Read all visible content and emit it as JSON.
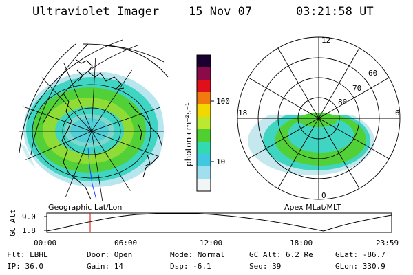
{
  "header": {
    "instrument": "Ultraviolet Imager",
    "date": "15 Nov 07",
    "time": "03:21:58 UT"
  },
  "geo_panel": {
    "label": "Geographic Lat/Lon"
  },
  "apex_panel": {
    "label": "Apex MLat/MLT",
    "mlt_labels": {
      "top": "12",
      "left": "18",
      "right": "6",
      "bottom": "0"
    },
    "mlat_labels": [
      "60",
      "70",
      "80"
    ]
  },
  "colorbar": {
    "unit_label": "photon cm⁻²s⁻¹",
    "ticks": [
      "100",
      "10"
    ],
    "colors": [
      "#1a0030",
      "#8a0a4a",
      "#e0101a",
      "#f07a10",
      "#f2d800",
      "#bde830",
      "#50d030",
      "#33d9b0",
      "#40c8e0",
      "#a0dff0",
      "#f2f5f5"
    ]
  },
  "altitude_plot": {
    "ylabel": "GC Alt",
    "y_ticks": [
      "9.0",
      "1.8"
    ],
    "x_ticks": [
      "00:00",
      "06:00",
      "12:00",
      "18:00",
      "23:59"
    ],
    "marker_time": "03:21:58"
  },
  "footer": {
    "row1": [
      {
        "key": "Flt:",
        "value": "LBHL"
      },
      {
        "key": "Door:",
        "value": "Open"
      },
      {
        "key": "Mode:",
        "value": "Normal"
      },
      {
        "key": "GC Alt:",
        "value": "6.2 Re"
      },
      {
        "key": "GLat:",
        "value": "-86.7"
      }
    ],
    "row2": [
      {
        "key": "IP:",
        "value": "36.0"
      },
      {
        "key": "Gain:",
        "value": "14"
      },
      {
        "key": "Dsp:",
        "value": "-6.1"
      },
      {
        "key": "Seq:",
        "value": "39"
      },
      {
        "key": "GLon:",
        "value": "330.9"
      }
    ]
  }
}
